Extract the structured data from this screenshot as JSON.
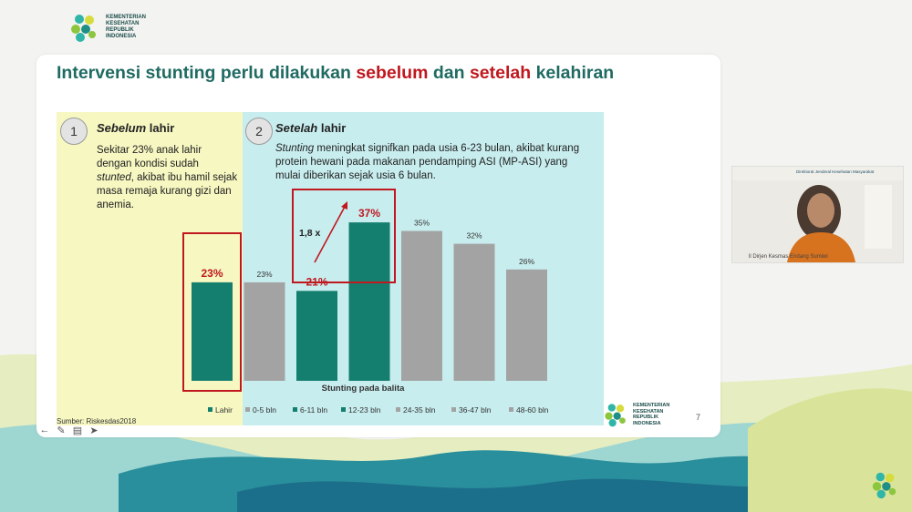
{
  "brand": {
    "line1": "KEMENTERIAN",
    "line2": "KESEHATAN",
    "line3": "REPUBLIK",
    "line4": "INDONESIA"
  },
  "slide": {
    "title_pre": "Intervensi stunting perlu dilakukan ",
    "title_red1": "sebelum",
    "title_mid": " dan ",
    "title_red2": "setelah",
    "title_post": " kelahiran",
    "panel1": {
      "number": "1",
      "heading_italic": "Sebelum",
      "heading_rest": " lahir",
      "desc_1": "Sekitar 23% anak lahir dengan kondisi sudah ",
      "desc_italic": "stunted",
      "desc_2": ", akibat ibu hamil sejak masa remaja kurang gizi dan anemia."
    },
    "panel2": {
      "number": "2",
      "heading_italic": "Setelah",
      "heading_rest": " lahir",
      "desc_italic": "Stunting",
      "desc_rest": " meningkat signifkan pada usia 6-23 bulan, akibat kurang protein hewani pada makanan pendamping ASI  (MP-ASI) yang mulai diberikan sejak usia 6 bulan."
    },
    "source": "Sumber: Riskesdas2018",
    "page_number": "7"
  },
  "chart_data": {
    "type": "bar",
    "xlabel": "Stunting pada balita",
    "categories": [
      "Lahir",
      "0-5 bln",
      "6-11 bln",
      "12-23 bln",
      "24-35 bln",
      "36-47 bln",
      "48-60 bln"
    ],
    "values": [
      23,
      23,
      21,
      37,
      35,
      32,
      26
    ],
    "value_labels": [
      "23%",
      "23%",
      "21%",
      "37%",
      "35%",
      "32%",
      "26%"
    ],
    "colors": [
      "#157f6f",
      "#a3a3a3",
      "#157f6f",
      "#157f6f",
      "#a3a3a3",
      "#a3a3a3",
      "#a3a3a3"
    ],
    "highlight_label_color": "#c0181f",
    "annotation_multiplier": "1,8 x",
    "legend_position": "bottom"
  },
  "video": {
    "banner": "Direktorat Jenderal Kesehatan Masyarakat",
    "caption": "ll Dirjen Kesmas Endang Sumiwi"
  },
  "toolbar": {
    "icons": [
      "arrow-left-icon",
      "pencil-icon",
      "slides-icon",
      "pointer-icon"
    ]
  }
}
